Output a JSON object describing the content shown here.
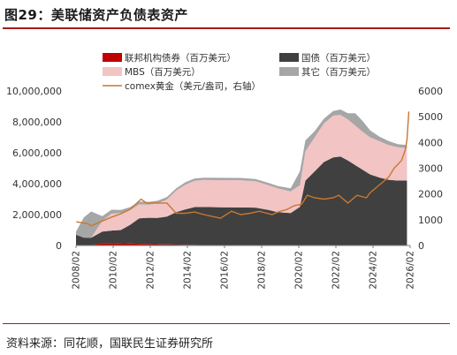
{
  "header": {
    "title": "图29：美联储资产负债表资产"
  },
  "footer": {
    "source": "资料来源：同花顺，国联民生证券研究所"
  },
  "chart_data": {
    "type": "area",
    "x_tick_labels": [
      "2008/02",
      "2010/02",
      "2012/02",
      "2014/02",
      "2016/02",
      "2018/02",
      "2020/02",
      "2022/02",
      "2024/02",
      "2026/02"
    ],
    "x_range": [
      2008.08,
      2026.17
    ],
    "left_axis": {
      "ticks": [
        "0",
        "2,000,000",
        "4,000,000",
        "6,000,000",
        "8,000,000",
        "10,000,000"
      ],
      "ylim": [
        0,
        10000000
      ]
    },
    "right_axis": {
      "ticks": [
        "0",
        "1000",
        "2000",
        "3000",
        "4000",
        "5000",
        "6000"
      ],
      "ylim": [
        0,
        6000
      ]
    },
    "legend": [
      {
        "label": "联邦机构债券（百万美元）",
        "color": "#c00000",
        "kind": "box"
      },
      {
        "label": "国债（百万美元）",
        "color": "#404040",
        "kind": "box"
      },
      {
        "label": "MBS（百万美元）",
        "color": "#f2c4c4",
        "kind": "box"
      },
      {
        "label": "其它（百万美元）",
        "color": "#a6a6a6",
        "kind": "box"
      },
      {
        "label": "comex黄金（美元/盎司，右轴）",
        "color": "#c8772f",
        "kind": "line"
      }
    ],
    "x": [
      2008.0,
      2008.5,
      2008.9,
      2009.5,
      2010.0,
      2010.5,
      2011.0,
      2011.5,
      2012.0,
      2012.5,
      2013.0,
      2013.5,
      2014.0,
      2014.5,
      2015.0,
      2016.0,
      2017.0,
      2017.8,
      2018.5,
      2019.0,
      2019.7,
      2020.2,
      2020.5,
      2021.0,
      2021.5,
      2022.0,
      2022.4,
      2022.8,
      2023.2,
      2023.6,
      2024.0,
      2024.5,
      2025.0,
      2025.5,
      2026.0
    ],
    "series": [
      {
        "name": "联邦机构债券（百万美元）",
        "color": "#c00000",
        "values": [
          0,
          10000,
          20000,
          150000,
          165000,
          150000,
          130000,
          110000,
          95000,
          80000,
          70000,
          55000,
          40000,
          35000,
          30000,
          15000,
          3000,
          3000,
          2500,
          2500,
          2500,
          2500,
          2500,
          2500,
          2500,
          2500,
          2500,
          2500,
          2500,
          2500,
          2500,
          2500,
          2500,
          2500,
          2500
        ]
      },
      {
        "name": "国债（百万美元）",
        "color": "#404040",
        "values": [
          700000,
          500000,
          480000,
          750000,
          800000,
          850000,
          1200000,
          1650000,
          1700000,
          1700000,
          1800000,
          2100000,
          2300000,
          2450000,
          2460000,
          2460000,
          2460000,
          2450000,
          2300000,
          2150000,
          2100000,
          2500000,
          4200000,
          4800000,
          5400000,
          5700000,
          5750000,
          5500000,
          5200000,
          4900000,
          4600000,
          4400000,
          4250000,
          4200000,
          4200000
        ]
      },
      {
        "name": "MBS（百万美元）",
        "color": "#f2c4c4",
        "values": [
          0,
          0,
          0,
          700000,
          1100000,
          1100000,
          950000,
          900000,
          850000,
          950000,
          1100000,
          1400000,
          1600000,
          1700000,
          1750000,
          1750000,
          1760000,
          1700000,
          1600000,
          1550000,
          1400000,
          1400000,
          1900000,
          2200000,
          2500000,
          2700000,
          2700000,
          2650000,
          2550000,
          2450000,
          2400000,
          2350000,
          2250000,
          2150000,
          2100000
        ]
      },
      {
        "name": "其它（百万美元）",
        "color": "#a6a6a6",
        "values": [
          200000,
          1300000,
          1700000,
          300000,
          250000,
          200000,
          200000,
          180000,
          180000,
          170000,
          170000,
          150000,
          150000,
          150000,
          150000,
          150000,
          150000,
          150000,
          150000,
          150000,
          200000,
          900000,
          700000,
          400000,
          300000,
          300000,
          350000,
          400000,
          800000,
          700000,
          450000,
          300000,
          250000,
          200000,
          200000
        ]
      }
    ],
    "gold": {
      "name": "comex黄金（美元/盎司，右轴）",
      "color": "#c8772f",
      "x": [
        2008.1,
        2008.7,
        2008.9,
        2009.5,
        2010.0,
        2010.5,
        2011.0,
        2011.6,
        2011.9,
        2012.5,
        2013.0,
        2013.5,
        2014.0,
        2014.5,
        2015.0,
        2015.9,
        2016.5,
        2017.0,
        2017.5,
        2018.0,
        2018.7,
        2019.0,
        2019.5,
        2019.9,
        2020.3,
        2020.6,
        2021.0,
        2021.5,
        2022.0,
        2022.3,
        2022.8,
        2023.3,
        2023.8,
        2024.0,
        2024.5,
        2025.0,
        2025.3,
        2025.7,
        2025.9,
        2026.0,
        2026.1
      ],
      "values": [
        920,
        850,
        760,
        950,
        1100,
        1230,
        1400,
        1800,
        1650,
        1650,
        1650,
        1250,
        1250,
        1300,
        1200,
        1060,
        1330,
        1200,
        1250,
        1330,
        1200,
        1300,
        1400,
        1550,
        1600,
        1950,
        1850,
        1800,
        1850,
        1950,
        1650,
        1950,
        1850,
        2050,
        2350,
        2650,
        3000,
        3300,
        3700,
        4100,
        5200
      ]
    }
  }
}
